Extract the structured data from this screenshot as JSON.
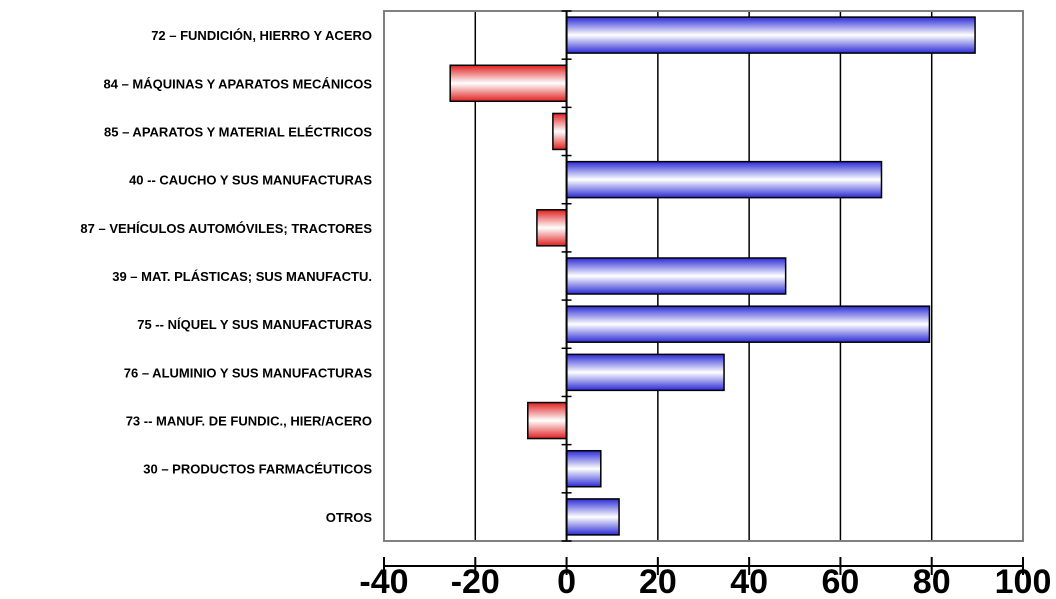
{
  "chart_data": {
    "type": "bar",
    "orientation": "horizontal",
    "categories": [
      "72 – FUNDICIÓN, HIERRO Y ACERO",
      "84 – MÁQUINAS Y APARATOS MECÁNICOS",
      "85 – APARATOS Y MATERIAL ELÉCTRICOS",
      "40 -- CAUCHO Y SUS MANUFACTURAS",
      "87 – VEHÍCULOS AUTOMÓVILES; TRACTORES",
      "39 – MAT. PLÁSTICAS; SUS MANUFACTU.",
      "75 -- NÍQUEL Y SUS MANUFACTURAS",
      "76 – ALUMINIO Y SUS MANUFACTURAS",
      "73 -- MANUF. DE FUNDIC., HIER/ACERO",
      "30 – PRODUCTOS FARMACÉUTICOS",
      "OTROS"
    ],
    "values": [
      89.5,
      -25.5,
      -3,
      69,
      -6.5,
      48,
      79.5,
      34.5,
      -8.5,
      7.5,
      11.5
    ],
    "xlim": [
      -40,
      100
    ],
    "xticks": [
      "-40",
      "-20",
      "0",
      "20",
      "40",
      "60",
      "80",
      "100"
    ],
    "xtick_values": [
      -40,
      -20,
      0,
      20,
      40,
      60,
      80,
      100
    ],
    "title": "",
    "xlabel": "",
    "ylabel": "",
    "grid": "vertical",
    "legend": "none",
    "colors": {
      "positive_fill_edge": "#2b2bd6",
      "positive_fill_center": "#ffffff",
      "positive_border": "#000000",
      "negative_fill_edge": "#e02020",
      "negative_fill_center": "#ffffff",
      "negative_border": "#000000",
      "grid": "#000000",
      "frame": "#808080"
    }
  }
}
